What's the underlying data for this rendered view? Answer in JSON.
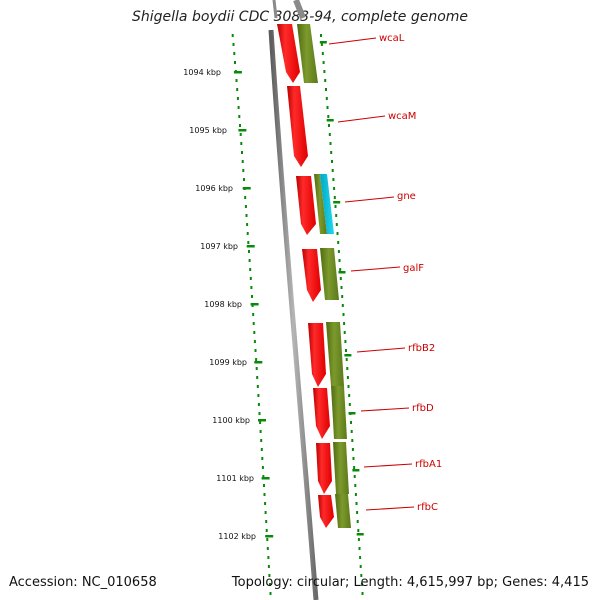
{
  "header": {
    "title": "Shigella boydii CDC 3083-94, complete genome"
  },
  "footer": {
    "accession": "Accession: NC_010658",
    "summary": "Topology: circular; Length: 4,615,997 bp; Genes: 4,415"
  },
  "axis": {
    "tick_labels": [
      "1094 kbp",
      "1095 kbp",
      "1096 kbp",
      "1097 kbp",
      "1098 kbp",
      "1099 kbp",
      "1100 kbp",
      "1101 kbp",
      "1102 kbp"
    ]
  },
  "genes": [
    {
      "name": "wcaL"
    },
    {
      "name": "wcaM"
    },
    {
      "name": "gne"
    },
    {
      "name": "galF"
    },
    {
      "name": "rfbB2"
    },
    {
      "name": "rfbD"
    },
    {
      "name": "rfbA1"
    },
    {
      "name": "rfbC"
    }
  ],
  "colors": {
    "gene_forward": "#ff0000",
    "cog_band": "#6b8e23",
    "cog_band_alt": "#00bcd4",
    "backbone": "#777777",
    "ruler": "#0a8a0a",
    "label": "#cc0000"
  }
}
